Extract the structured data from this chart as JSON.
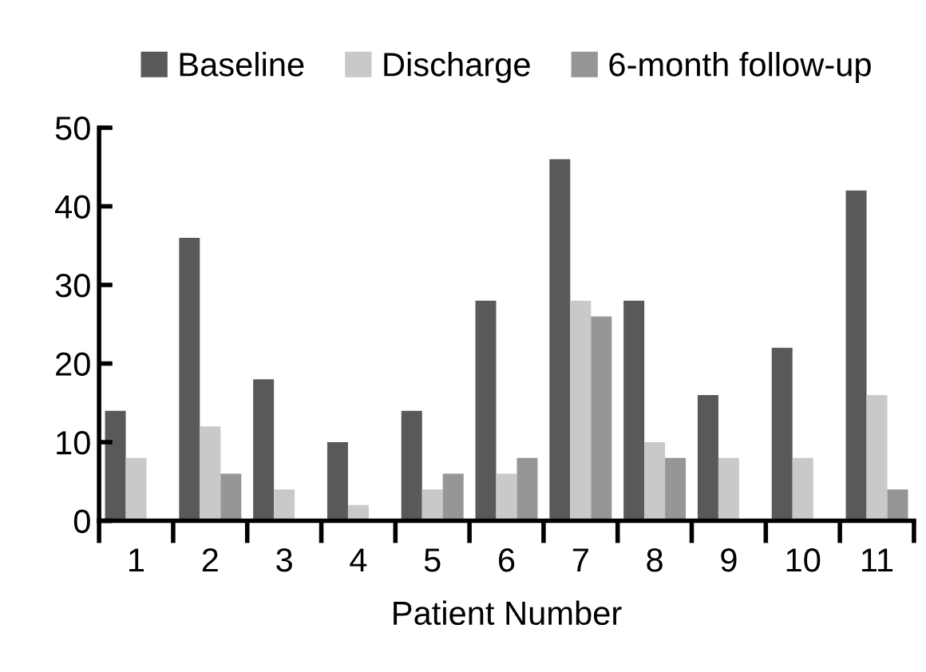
{
  "chart_data": {
    "type": "bar",
    "xlabel": "Patient Number",
    "categories": [
      "1",
      "2",
      "3",
      "4",
      "5",
      "6",
      "7",
      "8",
      "9",
      "10",
      "11"
    ],
    "series": [
      {
        "name": "Baseline",
        "color": "#58595b",
        "values": [
          14,
          36,
          18,
          10,
          14,
          28,
          46,
          28,
          16,
          22,
          42
        ]
      },
      {
        "name": "Discharge",
        "color": "#c8c9cb",
        "values": [
          8,
          12,
          4,
          2,
          4,
          6,
          28,
          10,
          8,
          8,
          16
        ]
      },
      {
        "name": "6-month follow-up",
        "color": "#959698",
        "values": [
          0,
          6,
          0,
          0,
          6,
          8,
          26,
          8,
          0,
          0,
          4
        ]
      }
    ],
    "ylim": [
      0,
      50
    ],
    "yticks": [
      0,
      10,
      20,
      30,
      40,
      50
    ],
    "grid": false,
    "legend": "top"
  }
}
